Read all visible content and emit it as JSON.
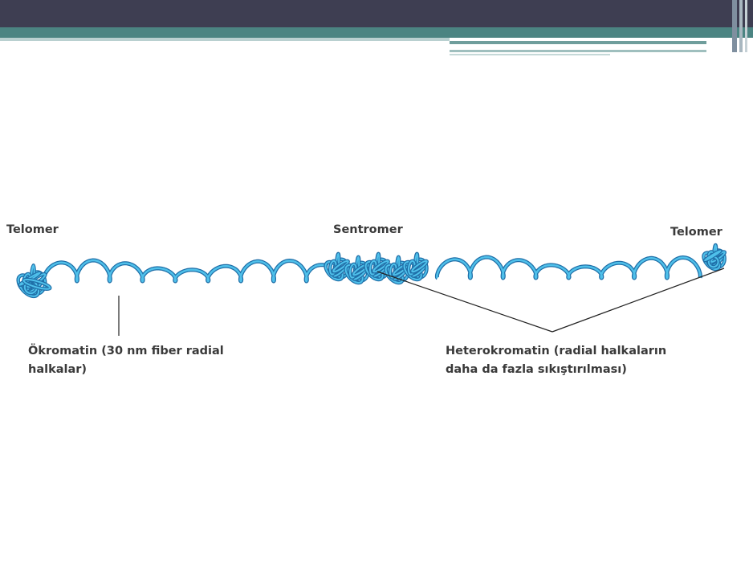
{
  "labels": {
    "telomer_left": "Telomer",
    "sentromer": "Sentromer",
    "telomer_right": "Telomer",
    "okromatin": {
      "lines": [
        "Ökromatin (30 nm fiber radial",
        "halkalar)"
      ]
    },
    "heterokromatin": {
      "lines": [
        "Heterokromatin (radial halkaların",
        "daha da fazla sıkıştırılması)"
      ]
    }
  }
}
